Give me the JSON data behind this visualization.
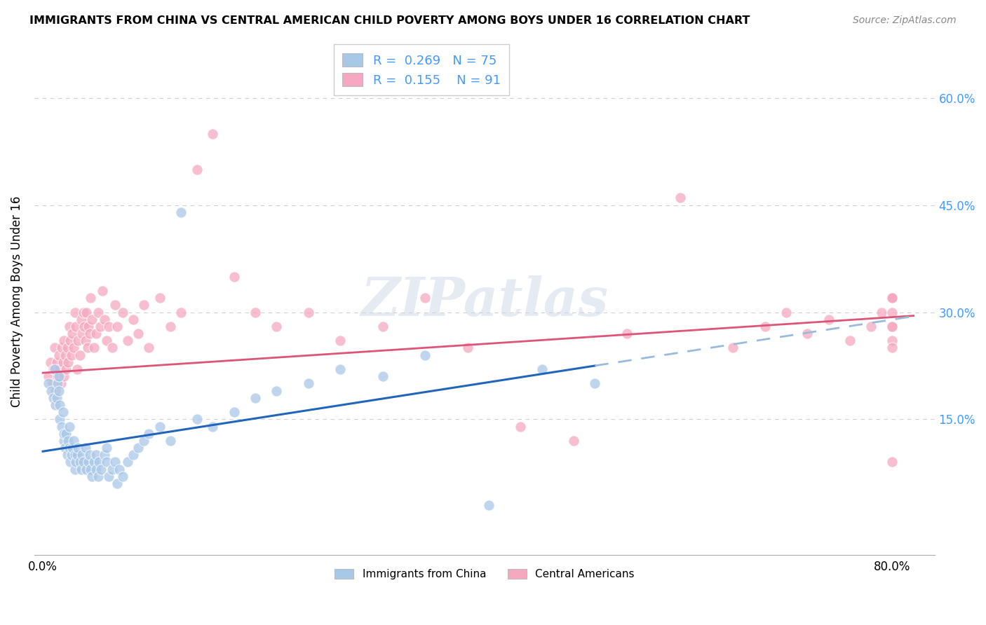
{
  "title": "IMMIGRANTS FROM CHINA VS CENTRAL AMERICAN CHILD POVERTY AMONG BOYS UNDER 16 CORRELATION CHART",
  "source": "Source: ZipAtlas.com",
  "ylabel": "Child Poverty Among Boys Under 16",
  "yticks": [
    0.0,
    0.15,
    0.3,
    0.45,
    0.6
  ],
  "ytick_labels_right": [
    "",
    "15.0%",
    "30.0%",
    "45.0%",
    "60.0%"
  ],
  "xtick_positions": [
    0.0,
    0.8
  ],
  "xtick_labels": [
    "0.0%",
    "80.0%"
  ],
  "xlim": [
    -0.008,
    0.84
  ],
  "ylim": [
    -0.04,
    0.67
  ],
  "R_china": 0.269,
  "N_china": 75,
  "R_central": 0.155,
  "N_central": 91,
  "color_china": "#a8c8e8",
  "color_central": "#f5a8c0",
  "trendline_china_solid": "#2266bb",
  "trendline_china_dashed": "#99bbdd",
  "trendline_central": "#dd5577",
  "legend_label_china": "Immigrants from China",
  "legend_label_central": "Central Americans",
  "watermark": "ZIPatlas",
  "grid_color": "#d0d0d0",
  "right_tick_color": "#4499ff",
  "title_fontsize": 11.5,
  "source_fontsize": 10,
  "tick_fontsize": 12,
  "legend_fontsize": 13,
  "china_x": [
    0.005,
    0.008,
    0.01,
    0.011,
    0.012,
    0.013,
    0.014,
    0.015,
    0.015,
    0.016,
    0.016,
    0.018,
    0.019,
    0.02,
    0.02,
    0.021,
    0.022,
    0.023,
    0.024,
    0.025,
    0.025,
    0.026,
    0.027,
    0.028,
    0.029,
    0.03,
    0.03,
    0.031,
    0.032,
    0.033,
    0.035,
    0.036,
    0.037,
    0.038,
    0.04,
    0.041,
    0.043,
    0.044,
    0.045,
    0.046,
    0.048,
    0.05,
    0.05,
    0.052,
    0.053,
    0.055,
    0.058,
    0.06,
    0.06,
    0.062,
    0.065,
    0.068,
    0.07,
    0.072,
    0.075,
    0.08,
    0.085,
    0.09,
    0.095,
    0.1,
    0.11,
    0.12,
    0.13,
    0.145,
    0.16,
    0.18,
    0.2,
    0.22,
    0.25,
    0.28,
    0.32,
    0.36,
    0.42,
    0.47,
    0.52
  ],
  "china_y": [
    0.2,
    0.19,
    0.18,
    0.22,
    0.17,
    0.18,
    0.2,
    0.19,
    0.21,
    0.15,
    0.17,
    0.14,
    0.16,
    0.12,
    0.13,
    0.11,
    0.13,
    0.1,
    0.12,
    0.14,
    0.11,
    0.09,
    0.1,
    0.11,
    0.12,
    0.1,
    0.08,
    0.09,
    0.1,
    0.11,
    0.09,
    0.08,
    0.1,
    0.09,
    0.11,
    0.08,
    0.09,
    0.1,
    0.08,
    0.07,
    0.09,
    0.1,
    0.08,
    0.07,
    0.09,
    0.08,
    0.1,
    0.09,
    0.11,
    0.07,
    0.08,
    0.09,
    0.06,
    0.08,
    0.07,
    0.09,
    0.1,
    0.11,
    0.12,
    0.13,
    0.14,
    0.12,
    0.44,
    0.15,
    0.14,
    0.16,
    0.18,
    0.19,
    0.2,
    0.22,
    0.21,
    0.24,
    0.03,
    0.22,
    0.2
  ],
  "central_x": [
    0.005,
    0.007,
    0.009,
    0.01,
    0.011,
    0.012,
    0.013,
    0.014,
    0.015,
    0.016,
    0.017,
    0.018,
    0.019,
    0.02,
    0.02,
    0.021,
    0.022,
    0.023,
    0.024,
    0.025,
    0.026,
    0.027,
    0.028,
    0.029,
    0.03,
    0.031,
    0.032,
    0.033,
    0.035,
    0.036,
    0.037,
    0.038,
    0.039,
    0.04,
    0.041,
    0.042,
    0.043,
    0.044,
    0.045,
    0.046,
    0.048,
    0.05,
    0.052,
    0.054,
    0.056,
    0.058,
    0.06,
    0.062,
    0.065,
    0.068,
    0.07,
    0.075,
    0.08,
    0.085,
    0.09,
    0.095,
    0.1,
    0.11,
    0.12,
    0.13,
    0.145,
    0.16,
    0.18,
    0.2,
    0.22,
    0.25,
    0.28,
    0.32,
    0.36,
    0.4,
    0.45,
    0.5,
    0.55,
    0.6,
    0.65,
    0.68,
    0.7,
    0.72,
    0.74,
    0.76,
    0.78,
    0.79,
    0.8,
    0.8,
    0.8,
    0.8,
    0.8,
    0.8,
    0.8,
    0.8,
    0.8
  ],
  "central_y": [
    0.21,
    0.23,
    0.2,
    0.22,
    0.25,
    0.19,
    0.23,
    0.21,
    0.24,
    0.22,
    0.2,
    0.25,
    0.23,
    0.21,
    0.26,
    0.24,
    0.22,
    0.25,
    0.23,
    0.28,
    0.26,
    0.24,
    0.27,
    0.25,
    0.3,
    0.28,
    0.22,
    0.26,
    0.24,
    0.29,
    0.27,
    0.3,
    0.28,
    0.26,
    0.3,
    0.25,
    0.28,
    0.27,
    0.32,
    0.29,
    0.25,
    0.27,
    0.3,
    0.28,
    0.33,
    0.29,
    0.26,
    0.28,
    0.25,
    0.31,
    0.28,
    0.3,
    0.26,
    0.29,
    0.27,
    0.31,
    0.25,
    0.32,
    0.28,
    0.3,
    0.5,
    0.55,
    0.35,
    0.3,
    0.28,
    0.3,
    0.26,
    0.28,
    0.32,
    0.25,
    0.14,
    0.12,
    0.27,
    0.46,
    0.25,
    0.28,
    0.3,
    0.27,
    0.29,
    0.26,
    0.28,
    0.3,
    0.32,
    0.28,
    0.26,
    0.32,
    0.25,
    0.3,
    0.28,
    0.32,
    0.09
  ],
  "trend_china_x0": 0.0,
  "trend_china_y0": 0.105,
  "trend_china_x1": 0.52,
  "trend_china_y1": 0.225,
  "trend_china_dashed_x0": 0.52,
  "trend_china_dashed_x1": 0.82,
  "trend_central_x0": 0.0,
  "trend_central_y0": 0.215,
  "trend_central_x1": 0.82,
  "trend_central_y1": 0.295
}
